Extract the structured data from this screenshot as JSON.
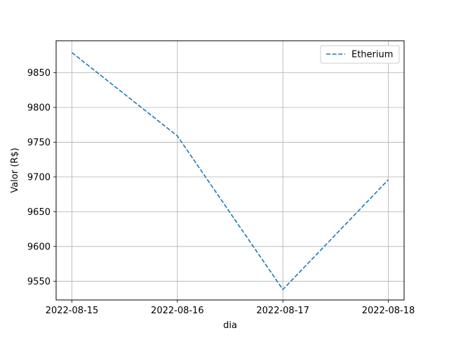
{
  "chart_data": {
    "type": "line",
    "title": "",
    "xlabel": "dia",
    "ylabel": "Valor (R$)",
    "categories": [
      "2022-08-15",
      "2022-08-16",
      "2022-08-17",
      "2022-08-18"
    ],
    "series": [
      {
        "name": "Etherium",
        "values": [
          9879,
          9759,
          9538,
          9696
        ],
        "color": "#1f77b4",
        "line_style": "dashed"
      }
    ],
    "ylim": [
      9523,
      9896
    ],
    "yticks": [
      9550,
      9600,
      9650,
      9700,
      9750,
      9800,
      9850
    ],
    "grid": true,
    "legend_position": "top-right"
  }
}
